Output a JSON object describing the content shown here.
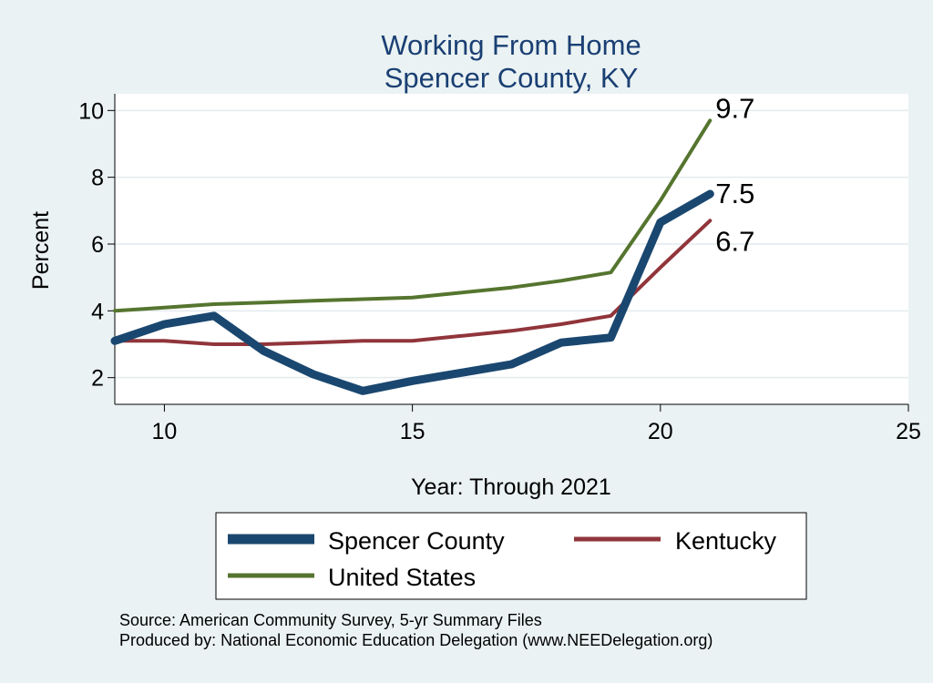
{
  "chart_data": {
    "type": "line",
    "title": "Working From Home",
    "subtitle": "Spencer County, KY",
    "xlabel": "Year: Through 2021",
    "ylabel": "Percent",
    "xlim": [
      9,
      25
    ],
    "ylim": [
      1.2,
      10.5
    ],
    "x_ticks": [
      10,
      15,
      20,
      25
    ],
    "y_ticks": [
      2,
      4,
      6,
      8,
      10
    ],
    "grid": true,
    "legend_position": "bottom",
    "x": [
      9,
      10,
      11,
      12,
      13,
      14,
      15,
      16,
      17,
      18,
      19,
      20,
      21
    ],
    "series": [
      {
        "name": "Spencer County",
        "color": "#1a476f",
        "values": [
          3.1,
          3.6,
          3.85,
          2.8,
          2.1,
          1.6,
          1.9,
          2.15,
          2.4,
          3.05,
          3.2,
          6.65,
          7.5
        ],
        "end_label": "7.5"
      },
      {
        "name": "Kentucky",
        "color": "#90353b",
        "values": [
          3.1,
          3.1,
          3.0,
          3.0,
          3.05,
          3.1,
          3.1,
          3.25,
          3.4,
          3.6,
          3.85,
          5.3,
          6.7
        ],
        "end_label": "6.7"
      },
      {
        "name": "United States",
        "color": "#55752f",
        "values": [
          4.0,
          4.1,
          4.2,
          4.25,
          4.3,
          4.35,
          4.4,
          4.55,
          4.7,
          4.9,
          5.15,
          7.3,
          9.7
        ],
        "end_label": "9.7"
      }
    ],
    "notes": [
      "Source: American Community Survey, 5-yr Summary Files",
      "Produced by: National Economic Education Delegation (www.NEEDelegation.org)"
    ]
  }
}
